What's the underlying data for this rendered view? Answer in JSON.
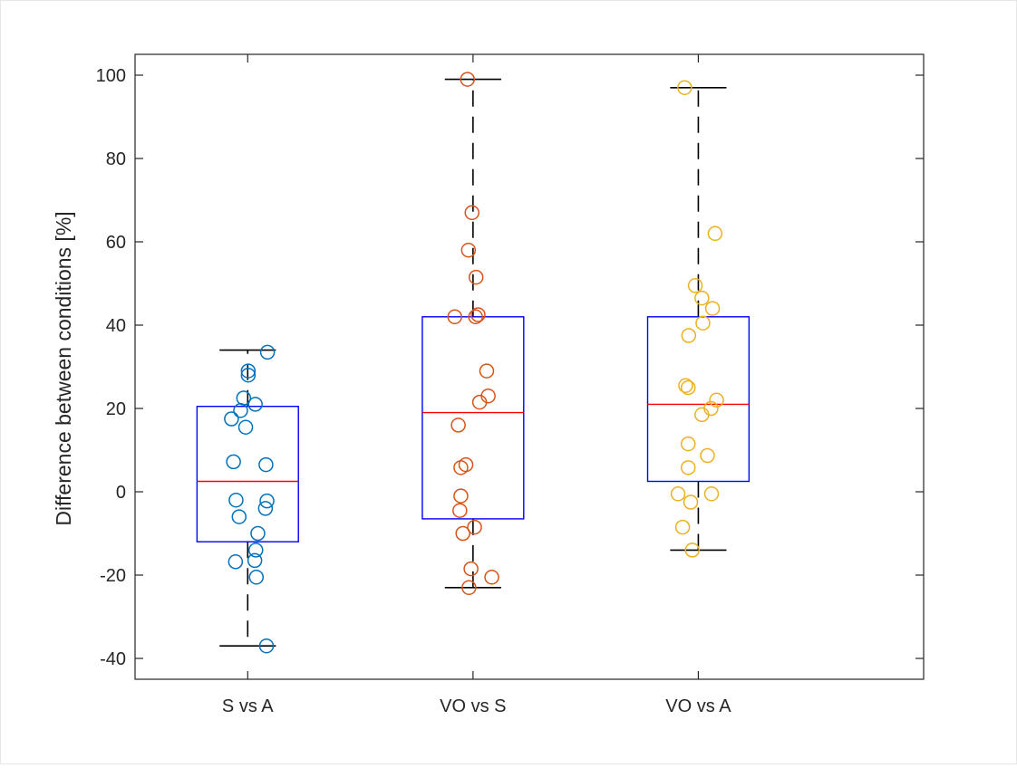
{
  "chart_data": {
    "type": "box",
    "title": "",
    "xlabel": "",
    "ylabel": "Difference between conditions [%]",
    "ylim": [
      -45,
      105
    ],
    "yticks": [
      -40,
      -20,
      0,
      20,
      40,
      60,
      80,
      100
    ],
    "grid": false,
    "categories": [
      "S vs A",
      "VO vs S",
      "VO vs A"
    ],
    "box_color": "#0000ff",
    "median_color": "#ff0000",
    "whisker_color": "#000000",
    "series": [
      {
        "category": "S vs A",
        "color": "#0072bd",
        "whisker_low": -37,
        "q1": -12,
        "median": 2.5,
        "q3": 20.5,
        "whisker_high": 34,
        "points": [
          {
            "dx": 0.39,
            "y": 33.5
          },
          {
            "dx": 0.01,
            "y": 29
          },
          {
            "dx": 0.01,
            "y": 28
          },
          {
            "dx": -0.08,
            "y": 22.5
          },
          {
            "dx": -0.14,
            "y": 19.5
          },
          {
            "dx": 0.15,
            "y": 21
          },
          {
            "dx": -0.32,
            "y": 17.5
          },
          {
            "dx": -0.04,
            "y": 15.5
          },
          {
            "dx": -0.28,
            "y": 7.2
          },
          {
            "dx": 0.36,
            "y": 6.5
          },
          {
            "dx": -0.23,
            "y": -2
          },
          {
            "dx": 0.38,
            "y": -2.2
          },
          {
            "dx": 0.35,
            "y": -4
          },
          {
            "dx": -0.17,
            "y": -6
          },
          {
            "dx": 0.2,
            "y": -10
          },
          {
            "dx": 0.16,
            "y": -14
          },
          {
            "dx": 0.14,
            "y": -16.5
          },
          {
            "dx": -0.24,
            "y": -16.8
          },
          {
            "dx": 0.17,
            "y": -20.5
          },
          {
            "dx": 0.37,
            "y": -37
          }
        ]
      },
      {
        "category": "VO vs S",
        "color": "#d95319",
        "whisker_low": -23,
        "q1": -6.5,
        "median": 19,
        "q3": 42,
        "whisker_high": 99,
        "points": [
          {
            "dx": -0.11,
            "y": 99
          },
          {
            "dx": -0.02,
            "y": 67
          },
          {
            "dx": -0.09,
            "y": 58
          },
          {
            "dx": 0.06,
            "y": 51.5
          },
          {
            "dx": 0.1,
            "y": 42.5
          },
          {
            "dx": 0.05,
            "y": 42
          },
          {
            "dx": -0.36,
            "y": 42
          },
          {
            "dx": 0.27,
            "y": 29
          },
          {
            "dx": 0.3,
            "y": 23
          },
          {
            "dx": 0.13,
            "y": 21.5
          },
          {
            "dx": -0.29,
            "y": 16
          },
          {
            "dx": -0.14,
            "y": 6.5
          },
          {
            "dx": -0.24,
            "y": 5.8
          },
          {
            "dx": -0.24,
            "y": -1
          },
          {
            "dx": -0.26,
            "y": -4.5
          },
          {
            "dx": 0.03,
            "y": -8.5
          },
          {
            "dx": -0.2,
            "y": -10
          },
          {
            "dx": -0.04,
            "y": -18.5
          },
          {
            "dx": 0.37,
            "y": -20.5
          },
          {
            "dx": -0.08,
            "y": -23
          }
        ]
      },
      {
        "category": "VO vs A",
        "color": "#edb120",
        "whisker_low": -14,
        "q1": 2.5,
        "median": 21,
        "q3": 42,
        "whisker_high": 97,
        "points": [
          {
            "dx": -0.27,
            "y": 97
          },
          {
            "dx": 0.33,
            "y": 62
          },
          {
            "dx": -0.06,
            "y": 49.5
          },
          {
            "dx": 0.07,
            "y": 46.5
          },
          {
            "dx": 0.28,
            "y": 44
          },
          {
            "dx": 0.09,
            "y": 40.5
          },
          {
            "dx": -0.19,
            "y": 37.5
          },
          {
            "dx": -0.25,
            "y": 25.5
          },
          {
            "dx": -0.2,
            "y": 25
          },
          {
            "dx": 0.36,
            "y": 22
          },
          {
            "dx": 0.25,
            "y": 20
          },
          {
            "dx": 0.07,
            "y": 18.5
          },
          {
            "dx": -0.2,
            "y": 11.5
          },
          {
            "dx": 0.18,
            "y": 8.7
          },
          {
            "dx": -0.2,
            "y": 5.8
          },
          {
            "dx": -0.4,
            "y": -0.5
          },
          {
            "dx": 0.26,
            "y": -0.5
          },
          {
            "dx": -0.15,
            "y": -2.5
          },
          {
            "dx": -0.31,
            "y": -8.5
          },
          {
            "dx": -0.12,
            "y": -14
          }
        ]
      }
    ]
  }
}
